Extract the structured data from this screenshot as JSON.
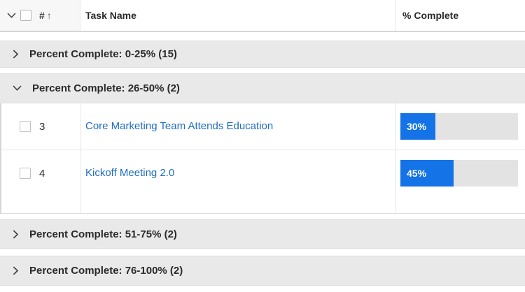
{
  "header": {
    "number_label": "#",
    "sort_arrow": "↑",
    "task_name_label": "Task Name",
    "percent_complete_label": "% Complete"
  },
  "groups": [
    {
      "label": "Percent Complete: 0-25% (15)",
      "expanded": false
    },
    {
      "label": "Percent Complete: 26-50% (2)",
      "expanded": true
    },
    {
      "label": "Percent Complete: 51-75% (2)",
      "expanded": false
    },
    {
      "label": "Percent Complete: 76-100% (2)",
      "expanded": false
    }
  ],
  "tasks": [
    {
      "number": "3",
      "name": "Core Marketing Team Attends Education",
      "percent_label": "30%",
      "percent_value": 30,
      "selected": false
    },
    {
      "number": "4",
      "name": "Kickoff Meeting 2.0",
      "percent_label": "45%",
      "percent_value": 45,
      "selected": false
    }
  ],
  "colors": {
    "accent_blue": "#1473e6",
    "link_blue": "#1f6dc1",
    "group_bg": "#e9e9e9",
    "bar_track": "#e3e3e3"
  }
}
